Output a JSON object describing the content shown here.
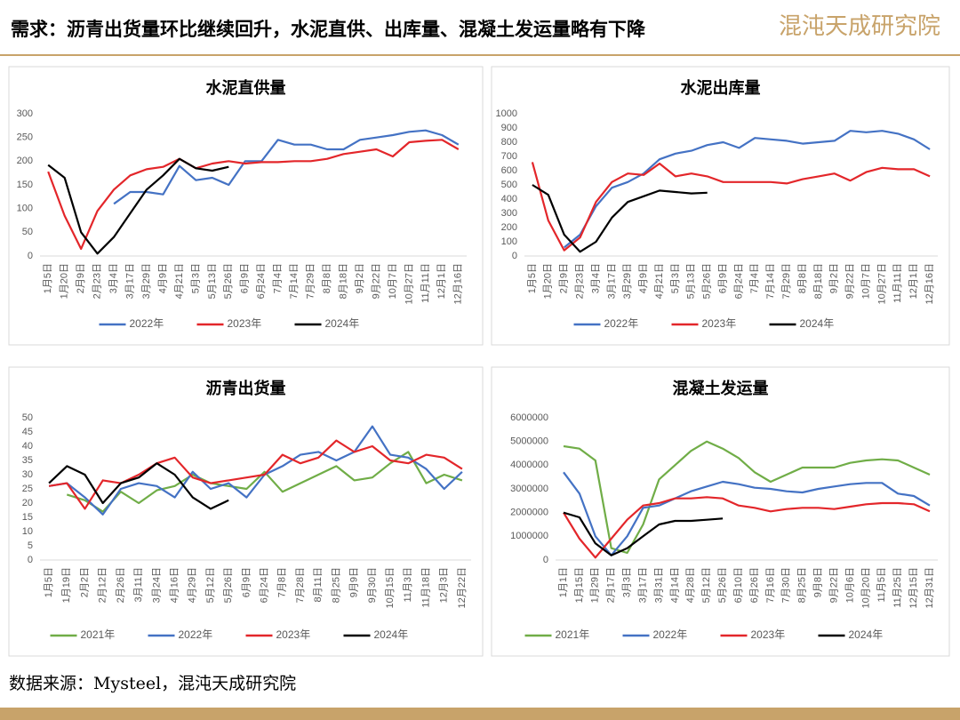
{
  "header": {
    "title": "需求：沥青出货量环比继续回升，水泥直供、出库量、混凝土发运量略有下降",
    "logo": "混沌天成研究院"
  },
  "footer": {
    "source": "数据来源：Mysteel，混沌天成研究院"
  },
  "chart_data": [
    {
      "type": "line",
      "title": "水泥直供量",
      "ylim": [
        0,
        300
      ],
      "yticks": [
        0,
        50,
        100,
        150,
        200,
        250,
        300
      ],
      "categories": [
        "1月5日",
        "1月20日",
        "2月9日",
        "2月23日",
        "3月4日",
        "3月17日",
        "3月29日",
        "4月9日",
        "4月21日",
        "5月3日",
        "5月13日",
        "5月26日",
        "6月9日",
        "6月24日",
        "7月4日",
        "7月14日",
        "7月29日",
        "8月8日",
        "8月18日",
        "9月2日",
        "9月22日",
        "10月7日",
        "10月27日",
        "11月11日",
        "12月1日",
        "12月16日"
      ],
      "series": [
        {
          "name": "2022年",
          "color": "#4472c4",
          "values": [
            null,
            null,
            null,
            null,
            110,
            135,
            135,
            130,
            190,
            160,
            165,
            150,
            200,
            200,
            245,
            235,
            235,
            225,
            225,
            245,
            250,
            255,
            262,
            265,
            255,
            235
          ]
        },
        {
          "name": "2023年",
          "color": "#e3262a",
          "values": [
            178,
            85,
            15,
            95,
            140,
            170,
            183,
            188,
            205,
            185,
            195,
            200,
            195,
            198,
            198,
            200,
            200,
            205,
            215,
            220,
            225,
            210,
            240,
            243,
            245,
            225
          ]
        },
        {
          "name": "2024年",
          "color": "#000000",
          "values": [
            192,
            165,
            50,
            5,
            40,
            90,
            140,
            170,
            205,
            185,
            180,
            188,
            null,
            null,
            null,
            null,
            null,
            null,
            null,
            null,
            null,
            null,
            null,
            null,
            null,
            null
          ]
        }
      ]
    },
    {
      "type": "line",
      "title": "水泥出库量",
      "ylim": [
        0,
        1000
      ],
      "yticks": [
        0,
        100,
        200,
        300,
        400,
        500,
        600,
        700,
        800,
        900,
        1000
      ],
      "categories": [
        "1月5日",
        "1月20日",
        "2月9日",
        "2月23日",
        "3月4日",
        "3月17日",
        "3月29日",
        "4月9日",
        "4月21日",
        "5月3日",
        "5月13日",
        "5月26日",
        "6月9日",
        "6月24日",
        "7月4日",
        "7月14日",
        "7月29日",
        "8月8日",
        "8月18日",
        "9月2日",
        "9月22日",
        "10月7日",
        "10月27日",
        "11月11日",
        "12月1日",
        "12月16日"
      ],
      "series": [
        {
          "name": "2022年",
          "color": "#4472c4",
          "values": [
            null,
            null,
            60,
            150,
            350,
            480,
            520,
            580,
            680,
            720,
            740,
            780,
            800,
            760,
            830,
            820,
            810,
            790,
            800,
            810,
            880,
            870,
            880,
            860,
            820,
            750
          ]
        },
        {
          "name": "2023年",
          "color": "#e3262a",
          "values": [
            660,
            250,
            40,
            130,
            380,
            520,
            580,
            570,
            650,
            560,
            580,
            560,
            520,
            520,
            520,
            520,
            510,
            540,
            560,
            580,
            530,
            590,
            620,
            610,
            610,
            560
          ]
        },
        {
          "name": "2024年",
          "color": "#000000",
          "values": [
            500,
            430,
            150,
            30,
            100,
            270,
            380,
            420,
            460,
            450,
            440,
            445,
            null,
            null,
            null,
            null,
            null,
            null,
            null,
            null,
            null,
            null,
            null,
            null,
            null,
            null
          ]
        }
      ]
    },
    {
      "type": "line",
      "title": "沥青出货量",
      "ylim": [
        0,
        50
      ],
      "yticks": [
        0,
        5,
        10,
        15,
        20,
        25,
        30,
        35,
        40,
        45,
        50
      ],
      "categories": [
        "1月5日",
        "1月19日",
        "2月2日",
        "2月12日",
        "2月26日",
        "3月11日",
        "3月24日",
        "4月16日",
        "4月29日",
        "5月12日",
        "5月26日",
        "6月9日",
        "6月24日",
        "7月8日",
        "7月28日",
        "8月11日",
        "8月25日",
        "9月9日",
        "9月30日",
        "10月15日",
        "11月3日",
        "11月18日",
        "12月3日",
        "12月22日"
      ],
      "series": [
        {
          "name": "2021年",
          "color": "#70ad47",
          "values": [
            null,
            23,
            21,
            17,
            24,
            20,
            24.5,
            26,
            30,
            27,
            26,
            25,
            31,
            24,
            27,
            30,
            33,
            28,
            29,
            34,
            38,
            27,
            30,
            28
          ]
        },
        {
          "name": "2022年",
          "color": "#4472c4",
          "values": [
            26,
            27,
            22,
            16,
            25,
            27,
            26,
            22,
            31,
            25,
            27,
            22,
            30,
            33,
            37,
            38,
            35,
            38,
            47,
            37,
            36,
            32,
            25,
            31
          ]
        },
        {
          "name": "2023年",
          "color": "#e3262a",
          "values": [
            26,
            27,
            18,
            28,
            27,
            30,
            34,
            36,
            29,
            27,
            28,
            29,
            30,
            37,
            34,
            36,
            42,
            38,
            40,
            35,
            34,
            37,
            36,
            32
          ]
        },
        {
          "name": "2024年",
          "color": "#000000",
          "values": [
            27,
            33,
            30,
            20,
            27,
            29,
            34,
            30,
            22,
            18,
            21,
            null,
            null,
            null,
            null,
            null,
            null,
            null,
            null,
            null,
            null,
            null,
            null,
            null
          ]
        }
      ]
    },
    {
      "type": "line",
      "title": "混凝土发运量",
      "ylim": [
        0,
        6000000
      ],
      "yticks": [
        0,
        1000000,
        2000000,
        3000000,
        4000000,
        5000000,
        6000000
      ],
      "categories": [
        "1月1日",
        "1月15日",
        "1月29日",
        "2月17日",
        "3月3日",
        "3月17日",
        "3月31日",
        "4月14日",
        "4月28日",
        "5月12日",
        "5月26日",
        "6月10日",
        "6月26日",
        "7月16日",
        "7月30日",
        "8月25日",
        "9月8日",
        "9月22日",
        "10月6日",
        "10月20日",
        "11月5日",
        "11月25日",
        "12月15日",
        "12月31日"
      ],
      "series": [
        {
          "name": "2021年",
          "color": "#70ad47",
          "values": [
            4800000,
            4700000,
            4200000,
            500000,
            300000,
            1500000,
            3400000,
            4000000,
            4600000,
            5000000,
            4700000,
            4300000,
            3700000,
            3300000,
            3600000,
            3900000,
            3900000,
            3900000,
            4100000,
            4200000,
            4250000,
            4200000,
            3900000,
            3600000
          ]
        },
        {
          "name": "2022年",
          "color": "#4472c4",
          "values": [
            3700000,
            2800000,
            1000000,
            200000,
            1000000,
            2200000,
            2300000,
            2600000,
            2900000,
            3100000,
            3300000,
            3200000,
            3050000,
            3000000,
            2900000,
            2850000,
            3000000,
            3100000,
            3200000,
            3250000,
            3250000,
            2800000,
            2700000,
            2300000
          ]
        },
        {
          "name": "2023年",
          "color": "#e3262a",
          "values": [
            2000000,
            900000,
            100000,
            900000,
            1700000,
            2300000,
            2400000,
            2600000,
            2600000,
            2650000,
            2600000,
            2300000,
            2200000,
            2050000,
            2150000,
            2200000,
            2200000,
            2150000,
            2250000,
            2350000,
            2400000,
            2400000,
            2350000,
            2050000
          ]
        },
        {
          "name": "2024年",
          "color": "#000000",
          "values": [
            2000000,
            1800000,
            700000,
            200000,
            500000,
            1000000,
            1500000,
            1650000,
            1650000,
            1700000,
            1750000,
            null,
            null,
            null,
            null,
            null,
            null,
            null,
            null,
            null,
            null,
            null,
            null,
            null
          ]
        }
      ]
    }
  ]
}
